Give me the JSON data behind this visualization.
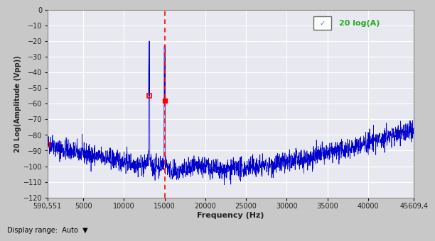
{
  "x_min": 590.551,
  "x_max": 45609.4,
  "y_min": -120,
  "y_max": 0,
  "y_ticks": [
    0,
    -10,
    -20,
    -30,
    -40,
    -50,
    -60,
    -70,
    -80,
    -90,
    -100,
    -110,
    -120
  ],
  "x_ticks": [
    590.551,
    5000,
    10000,
    15000,
    20000,
    25000,
    30000,
    35000,
    40000,
    45609.4
  ],
  "x_tick_labels": [
    "590,551",
    "5000",
    "10000",
    "15000",
    "20000",
    "25000",
    "30000",
    "35000",
    "40000",
    "45609,4"
  ],
  "xlabel": "Frequency (Hz)",
  "ylabel": "20 Log(Amplitude (Vpp))",
  "legend_label": "20 log(A)",
  "line_color": "#0000cc",
  "bg_color": "#c8c8c8",
  "plot_bg_color": "#e8e8f0",
  "grid_color": "#ffffff",
  "red_line_x": 15000,
  "peak1_x": 13100,
  "peak1_y": -55,
  "peak2_x": 15000,
  "peak2_y": -58,
  "start_marker_x": 590.551,
  "start_marker_y": -86
}
